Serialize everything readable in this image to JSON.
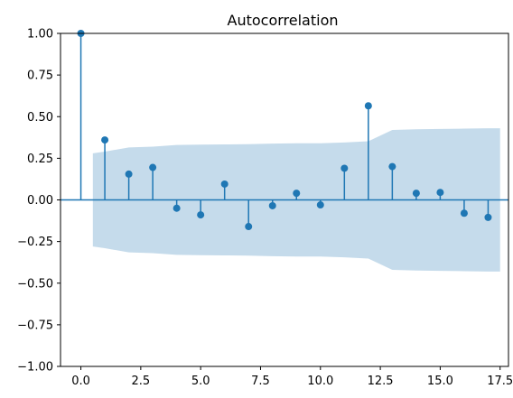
{
  "chart_data": {
    "type": "stem",
    "title": "Autocorrelation",
    "xlabel": "",
    "ylabel": "",
    "xlim": [
      -0.85,
      17.85
    ],
    "ylim": [
      -1.0,
      1.0
    ],
    "xticks": [
      0.0,
      2.5,
      5.0,
      7.5,
      10.0,
      12.5,
      15.0,
      17.5
    ],
    "xtick_labels": [
      "0.0",
      "2.5",
      "5.0",
      "7.5",
      "10.0",
      "12.5",
      "15.0",
      "17.5"
    ],
    "yticks": [
      -1.0,
      -0.75,
      -0.5,
      -0.25,
      0.0,
      0.25,
      0.5,
      0.75,
      1.0
    ],
    "ytick_labels": [
      "−1.00",
      "−0.75",
      "−0.50",
      "−0.25",
      "0.00",
      "0.25",
      "0.50",
      "0.75",
      "1.00"
    ],
    "lags": [
      0,
      1,
      2,
      3,
      4,
      5,
      6,
      7,
      8,
      9,
      10,
      11,
      12,
      13,
      14,
      15,
      16,
      17
    ],
    "values": [
      1.0,
      0.36,
      0.155,
      0.195,
      -0.05,
      -0.09,
      0.095,
      -0.16,
      -0.035,
      0.04,
      -0.03,
      0.19,
      0.565,
      0.2,
      0.04,
      0.045,
      -0.08,
      -0.105
    ],
    "confint": {
      "x": [
        0.5,
        1,
        2,
        3,
        4,
        5,
        6,
        7,
        8,
        9,
        10,
        11,
        12,
        13,
        14,
        15,
        16,
        17,
        17.5
      ],
      "upper": [
        0.28,
        0.29,
        0.315,
        0.32,
        0.33,
        0.332,
        0.333,
        0.335,
        0.338,
        0.34,
        0.34,
        0.345,
        0.352,
        0.42,
        0.424,
        0.426,
        0.428,
        0.43,
        0.43
      ]
    },
    "grid": false,
    "colors": {
      "stem": "#1f77b4",
      "band": "#a6c8e0",
      "zero_line": "#1f77b4"
    }
  }
}
